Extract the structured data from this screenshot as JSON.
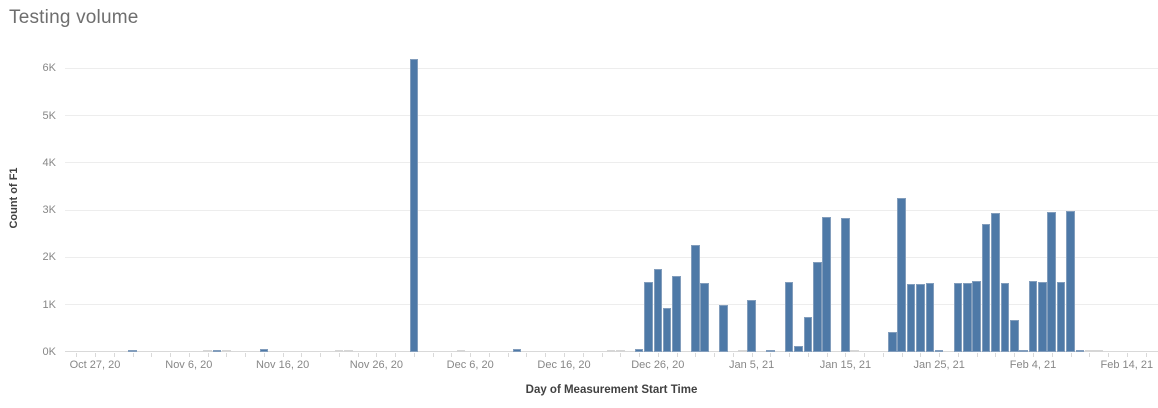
{
  "chart_data": {
    "type": "bar",
    "title": "Testing volume",
    "xlabel": "Day of Measurement Start Time",
    "ylabel": "Count of F1",
    "grid": "horizontal",
    "legend": "none",
    "colors": {
      "bar": "#4e79a7",
      "light_bar": "#d6d6d6",
      "gridline": "#ededed",
      "axis_line": "#d9d9d9",
      "tick_label": "#878787",
      "axis_title": "#414141",
      "title": "#6e6e6e"
    },
    "y_axis": {
      "ticks": [
        {
          "value": 0,
          "label": "0K"
        },
        {
          "value": 1000,
          "label": "1K"
        },
        {
          "value": 2000,
          "label": "2K"
        },
        {
          "value": 3000,
          "label": "3K"
        },
        {
          "value": 4000,
          "label": "4K"
        },
        {
          "value": 5000,
          "label": "5K"
        },
        {
          "value": 6000,
          "label": "6K"
        }
      ],
      "max": 6600
    },
    "x_axis": {
      "start_date": "Oct 27, 20",
      "end_date": "Feb 14, 21",
      "tick_labels": [
        {
          "day": 0,
          "label": "Oct 27, 20"
        },
        {
          "day": 10,
          "label": "Nov 6, 20"
        },
        {
          "day": 20,
          "label": "Nov 16, 20"
        },
        {
          "day": 30,
          "label": "Nov 26, 20"
        },
        {
          "day": 40,
          "label": "Dec 6, 20"
        },
        {
          "day": 50,
          "label": "Dec 16, 20"
        },
        {
          "day": 60,
          "label": "Dec 26, 20"
        },
        {
          "day": 70,
          "label": "Jan 5, 21"
        },
        {
          "day": 80,
          "label": "Jan 15, 21"
        },
        {
          "day": 90,
          "label": "Jan 25, 21"
        },
        {
          "day": 100,
          "label": "Feb 4, 21"
        },
        {
          "day": 110,
          "label": "Feb 14, 21"
        }
      ]
    },
    "bars": [
      {
        "day": 4,
        "date": "Oct 31, 20",
        "value": 40
      },
      {
        "day": 13,
        "date": "Nov 9, 20",
        "value": 50
      },
      {
        "day": 18,
        "date": "Nov 14, 20",
        "value": 70
      },
      {
        "day": 34,
        "date": "Nov 30, 20",
        "value": 6190
      },
      {
        "day": 45,
        "date": "Dec 11, 20",
        "value": 60
      },
      {
        "day": 58,
        "date": "Dec 24, 20",
        "value": 60
      },
      {
        "day": 59,
        "date": "Dec 25, 20",
        "value": 1480
      },
      {
        "day": 60,
        "date": "Dec 26, 20",
        "value": 1750
      },
      {
        "day": 61,
        "date": "Dec 27, 20",
        "value": 930
      },
      {
        "day": 62,
        "date": "Dec 28, 20",
        "value": 1600
      },
      {
        "day": 64,
        "date": "Dec 30, 20",
        "value": 2260
      },
      {
        "day": 65,
        "date": "Dec 31, 20",
        "value": 1470
      },
      {
        "day": 67,
        "date": "Jan 2, 21",
        "value": 1000
      },
      {
        "day": 70,
        "date": "Jan 5, 21",
        "value": 1100
      },
      {
        "day": 72,
        "date": "Jan 7, 21",
        "value": 30
      },
      {
        "day": 74,
        "date": "Jan 9, 21",
        "value": 1480
      },
      {
        "day": 75,
        "date": "Jan 10, 21",
        "value": 130
      },
      {
        "day": 76,
        "date": "Jan 11, 21",
        "value": 750
      },
      {
        "day": 77,
        "date": "Jan 12, 21",
        "value": 1900
      },
      {
        "day": 78,
        "date": "Jan 13, 21",
        "value": 2860
      },
      {
        "day": 80,
        "date": "Jan 15, 21",
        "value": 2840
      },
      {
        "day": 85,
        "date": "Jan 20, 21",
        "value": 420
      },
      {
        "day": 86,
        "date": "Jan 21, 21",
        "value": 3250
      },
      {
        "day": 87,
        "date": "Jan 22, 21",
        "value": 1430
      },
      {
        "day": 88,
        "date": "Jan 23, 21",
        "value": 1430
      },
      {
        "day": 89,
        "date": "Jan 24, 21",
        "value": 1470
      },
      {
        "day": 90,
        "date": "Jan 25, 21",
        "value": 40
      },
      {
        "day": 92,
        "date": "Jan 27, 21",
        "value": 1470
      },
      {
        "day": 93,
        "date": "Jan 28, 21",
        "value": 1450
      },
      {
        "day": 94,
        "date": "Jan 29, 21",
        "value": 1500
      },
      {
        "day": 95,
        "date": "Jan 30, 21",
        "value": 2710
      },
      {
        "day": 96,
        "date": "Jan 31, 21",
        "value": 2950
      },
      {
        "day": 97,
        "date": "Feb 1, 21",
        "value": 1450
      },
      {
        "day": 98,
        "date": "Feb 2, 21",
        "value": 680
      },
      {
        "day": 99,
        "date": "Feb 3, 21",
        "value": 50
      },
      {
        "day": 100,
        "date": "Feb 4, 21",
        "value": 1500
      },
      {
        "day": 101,
        "date": "Feb 5, 21",
        "value": 1480
      },
      {
        "day": 102,
        "date": "Feb 6, 21",
        "value": 2960
      },
      {
        "day": 103,
        "date": "Feb 7, 21",
        "value": 1480
      },
      {
        "day": 104,
        "date": "Feb 8, 21",
        "value": 2980
      },
      {
        "day": 105,
        "date": "Feb 9, 21",
        "value": 50
      }
    ],
    "light_bars": [
      {
        "day": 12,
        "date": "Nov 8, 20",
        "value": 25
      },
      {
        "day": 14,
        "date": "Nov 10, 20",
        "value": 25
      },
      {
        "day": 26,
        "date": "Nov 22, 20",
        "value": 25
      },
      {
        "day": 27,
        "date": "Nov 23, 20",
        "value": 25
      },
      {
        "day": 39,
        "date": "Dec 5, 20",
        "value": 25
      },
      {
        "day": 55,
        "date": "Dec 21, 20",
        "value": 25
      },
      {
        "day": 56,
        "date": "Dec 22, 20",
        "value": 25
      },
      {
        "day": 69,
        "date": "Jan 4, 21",
        "value": 25
      },
      {
        "day": 81,
        "date": "Jan 16, 21",
        "value": 25
      },
      {
        "day": 106,
        "date": "Feb 10, 21",
        "value": 25
      },
      {
        "day": 107,
        "date": "Feb 11, 21",
        "value": 25
      }
    ]
  }
}
